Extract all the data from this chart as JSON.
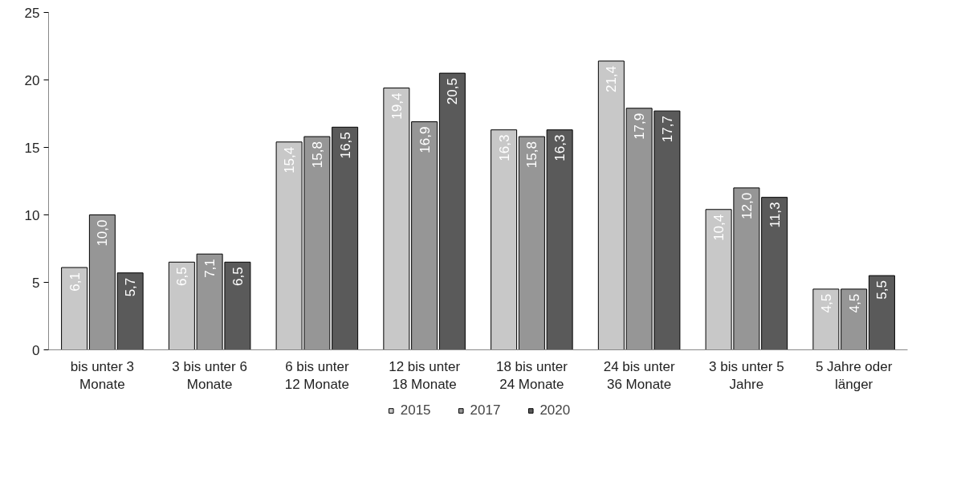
{
  "chart_data": {
    "type": "bar",
    "categories": [
      "bis unter 3\nMonate",
      "3 bis unter 6\nMonate",
      "6 bis unter\n12 Monate",
      "12 bis unter\n18 Monate",
      "18 bis unter\n24 Monate",
      "24 bis unter\n36 Monate",
      "3 bis unter 5\nJahre",
      "5 Jahre oder\nlänger"
    ],
    "series": [
      {
        "name": "2015",
        "color": "#c8c8c8",
        "values": [
          6.1,
          6.5,
          15.4,
          19.4,
          16.3,
          21.4,
          10.4,
          4.5
        ],
        "value_labels": [
          "6,1",
          "6,5",
          "15,4",
          "19,4",
          "16,3",
          "21,4",
          "10,4",
          "4,5"
        ]
      },
      {
        "name": "2017",
        "color": "#969696",
        "values": [
          10.0,
          7.1,
          15.8,
          16.9,
          15.8,
          17.9,
          12.0,
          4.5
        ],
        "value_labels": [
          "10,0",
          "7,1",
          "15,8",
          "16,9",
          "15,8",
          "17,9",
          "12,0",
          "4,5"
        ]
      },
      {
        "name": "2020",
        "color": "#5a5a5a",
        "values": [
          5.7,
          6.5,
          16.5,
          20.5,
          16.3,
          17.7,
          11.3,
          5.5
        ],
        "value_labels": [
          "5,7",
          "6,5",
          "16,5",
          "20,5",
          "16,3",
          "17,7",
          "11,3",
          "5,5"
        ]
      }
    ],
    "ylim": [
      0,
      25
    ],
    "yticks": [
      0,
      5,
      10,
      15,
      20,
      25
    ],
    "grid": false,
    "legend": "bottom"
  }
}
